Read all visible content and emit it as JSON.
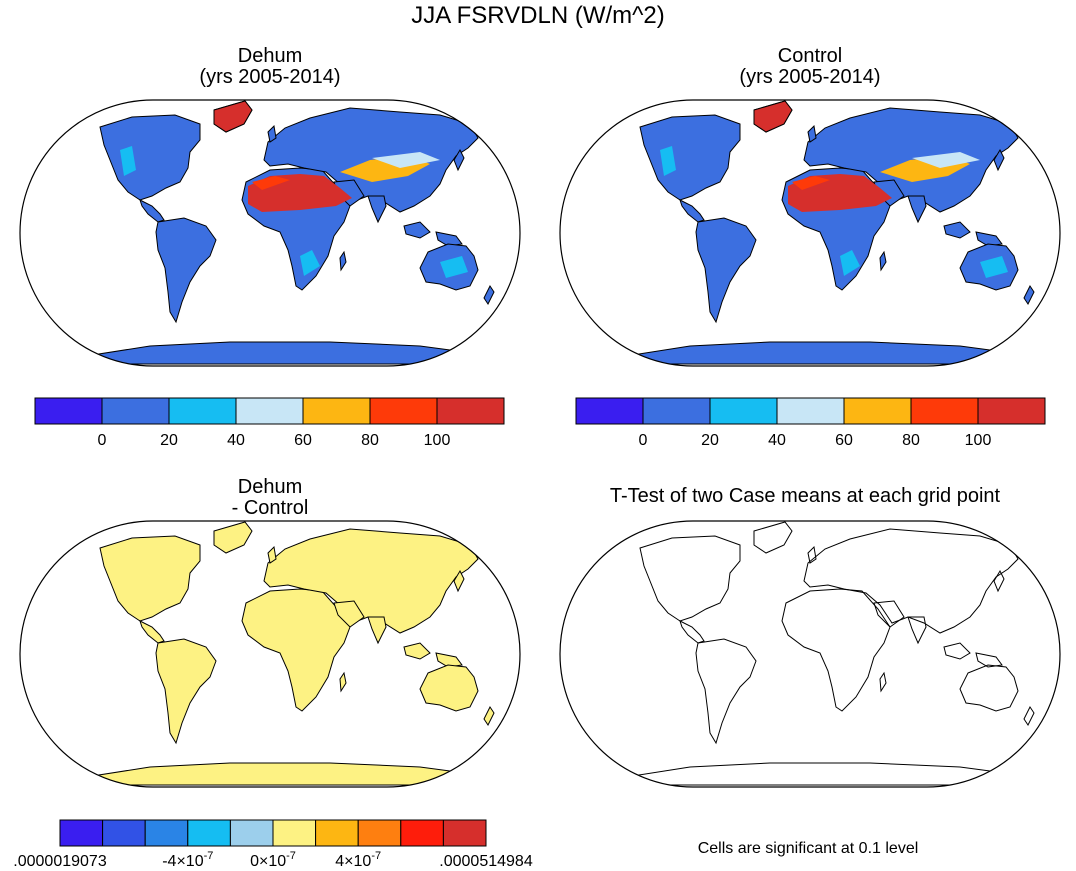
{
  "figure": {
    "title": "JJA FSRVDLN (W/m^2)"
  },
  "panels": [
    {
      "id": "dehum",
      "title_line1": "Dehum",
      "title_line2": "(yrs 2005-2014)",
      "colorbar": {
        "colors": [
          "#3a1ef0",
          "#3c6fe0",
          "#16bdf2",
          "#c8e6f6",
          "#fdb612",
          "#fe3a09",
          "#d62f2c"
        ],
        "tick_labels": [
          "0",
          "20",
          "40",
          "60",
          "80",
          "100"
        ]
      }
    },
    {
      "id": "control",
      "title_line1": "Control",
      "title_line2": "(yrs 2005-2014)",
      "colorbar": {
        "colors": [
          "#3a1ef0",
          "#3c6fe0",
          "#16bdf2",
          "#c8e6f6",
          "#fdb612",
          "#fe3a09",
          "#d62f2c"
        ],
        "tick_labels": [
          "0",
          "20",
          "40",
          "60",
          "80",
          "100"
        ]
      }
    },
    {
      "id": "difference",
      "title_line1": "Dehum",
      "title_line2": "- Control",
      "fill_color": "#fdf283",
      "colorbar": {
        "colors": [
          "#3a1ef0",
          "#3152e6",
          "#2a84e6",
          "#15bdf2",
          "#9ccfec",
          "#fdf283",
          "#fdb612",
          "#fe7f10",
          "#fe1d0b",
          "#d62f2c"
        ],
        "tick_labels": [
          ".0000019073",
          "-4×10",
          "0×10",
          "4×10",
          ".0000514984"
        ],
        "tick_exponents": [
          "",
          "-7",
          "-7",
          "-7",
          ""
        ]
      }
    },
    {
      "id": "ttest",
      "title_line1": "T-Test of two Case means at each grid point",
      "footnote": "Cells are significant at 0.1 level"
    }
  ]
}
